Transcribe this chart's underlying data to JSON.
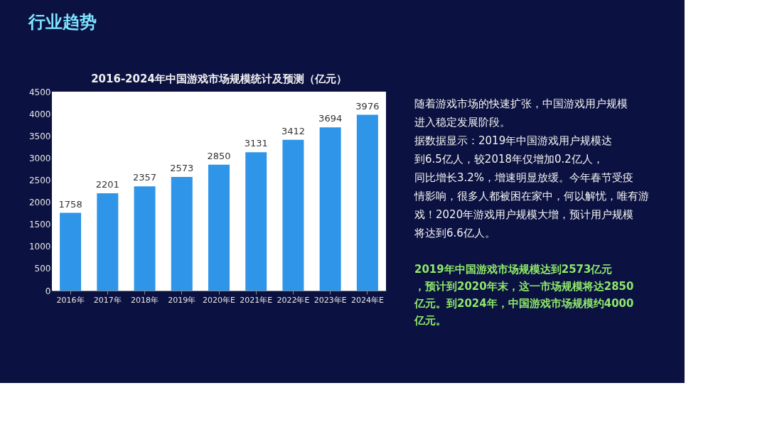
{
  "chart_data": {
    "type": "bar",
    "title": "行业趋势",
    "subtitle": "2016-2024年中国游戏市场规模统计及预测（亿元）",
    "categories": [
      "2016年",
      "2017年",
      "2018年",
      "2019年",
      "2020年E",
      "2021年E",
      "2022年E",
      "2023年E",
      "2024年E"
    ],
    "values": [
      1758,
      2201,
      2357,
      2573,
      2850,
      3131,
      3412,
      3694,
      3976
    ],
    "color": "#2f95e8",
    "data_labels": true,
    "grid": false,
    "ylim": [
      0,
      4500
    ],
    "yticks": [
      0,
      500,
      1000,
      1500,
      2000,
      2500,
      3000,
      3500,
      4000,
      4500
    ],
    "annotations": [
      "随着游戏市场的快速扩张，中国游戏用户规模进入稳定发展阶段。",
      "据数据显示：2019年中国游戏用户规模达到6.5亿人，较2018年仅增加0.2亿人，同比增长3.2%，增速明显放缓。今年春节受疫情影响，很多人都被困在家中，何以解忧，唯有游戏！2020年游戏用户规模大增，预计用户规模将达到6.6亿人。",
      "2019年中国游戏市场规模达到2573亿元，预计到2020年末，这一市场规模将达2850亿元。到2024年，中国游戏市场规模约4000亿元。"
    ]
  }
}
